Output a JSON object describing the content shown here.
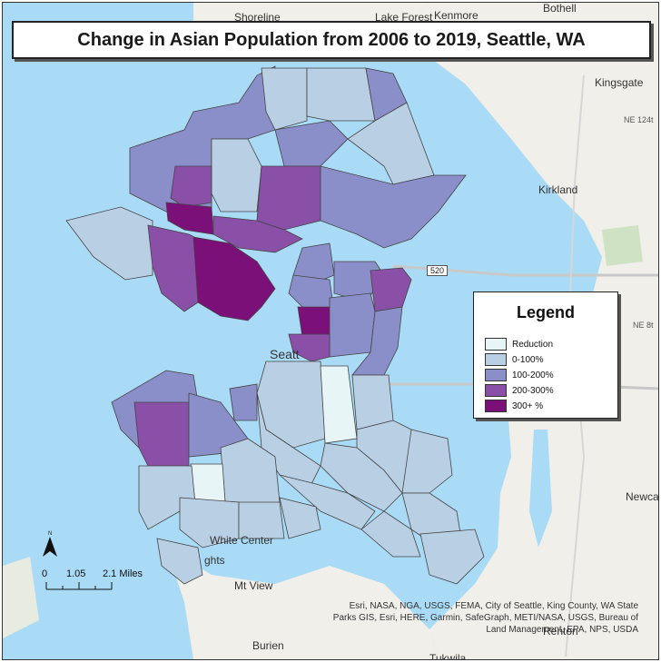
{
  "title": "Change in Asian Population from 2006 to 2019, Seattle, WA",
  "legend": {
    "title": "Legend",
    "items": [
      {
        "label": "Reduction",
        "color": "#e8f5f7"
      },
      {
        "label": "0-100%",
        "color": "#b9cfe4"
      },
      {
        "label": "100-200%",
        "color": "#8b8fc9"
      },
      {
        "label": "200-300%",
        "color": "#8a50a8"
      },
      {
        "label": "300+ %",
        "color": "#7a1078"
      }
    ]
  },
  "scale_bar": {
    "north_label": "N",
    "ticks": [
      "0",
      "1.05",
      "2.1 Miles"
    ]
  },
  "place_labels": {
    "shoreline": "Shoreline",
    "lake_forest": "Lake Forest",
    "kenmore": "Kenmore",
    "bothell": "Bothell",
    "kingsgate": "Kingsgate",
    "ne124": "NE 124t",
    "kirkland": "Kirkland",
    "ne8": "NE 8t",
    "seattle": "Seatt",
    "newcastle": "Newcas",
    "white_center": "White Center",
    "heights": "ghts",
    "mt_view": "Mt View",
    "burien": "Burien",
    "tukwila": "Tukwila",
    "renton": "Renton",
    "route_520": "520"
  },
  "attribution": "Esri, NASA, NGA, USGS, FEMA, City of Seattle, King County, WA State Parks GIS, Esri, HERE, Garmin, SafeGraph, METI/NASA, USGS, Bureau of Land Management, EPA, NPS, USDA",
  "colors": {
    "water": "#a9dbf6",
    "land": "#f1efe9",
    "park": "#cfe3c4"
  }
}
